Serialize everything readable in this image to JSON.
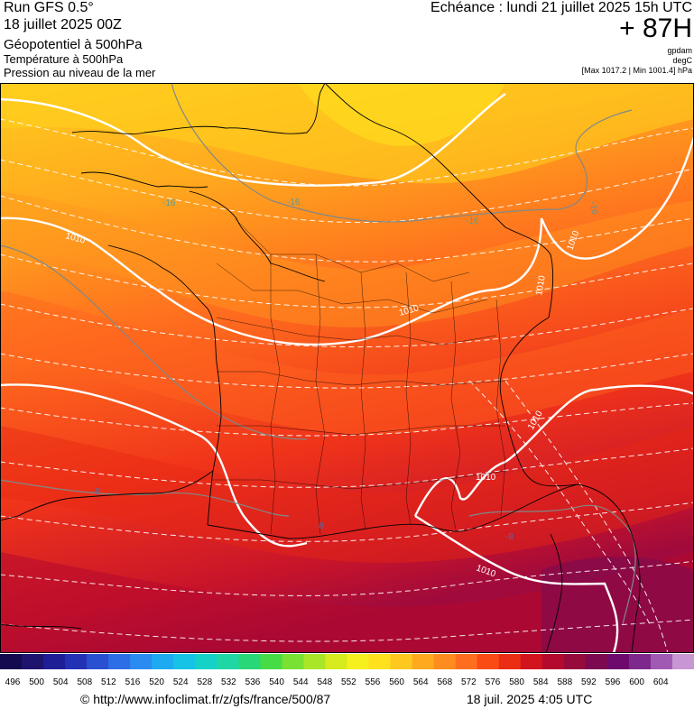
{
  "header": {
    "run_label": "Run GFS 0.5°",
    "run_date": "18 juillet 2025 00Z",
    "field_main": "Géopotentiel à 500hPa",
    "field_temp": "Température à 500hPa",
    "field_pressure": "Pression au niveau de la mer",
    "valid_time": "Echéance : lundi 21 juillet 2025 15h UTC",
    "lead_time": "+ 87H",
    "unit_geopotential": "gpdam",
    "unit_temperature": "degC",
    "pressure_range": "[Max 1017.2 | Min 1001.4] hPa"
  },
  "map": {
    "isobar_labels": [
      "1010",
      "1010",
      "1010",
      "1010",
      "1010",
      "1010",
      "1010"
    ],
    "isotherm_labels": [
      "-16",
      "-16",
      "-16",
      "-16",
      "-8",
      "-8",
      "-8"
    ]
  },
  "colorscale": {
    "ticks": [
      "496",
      "500",
      "504",
      "508",
      "512",
      "516",
      "520",
      "524",
      "528",
      "532",
      "536",
      "540",
      "544",
      "548",
      "552",
      "556",
      "560",
      "564",
      "568",
      "572",
      "576",
      "580",
      "584",
      "588",
      "592",
      "596",
      "600",
      "604"
    ],
    "colors": [
      "#140a50",
      "#1e146e",
      "#1e1e96",
      "#2332b4",
      "#2a50d2",
      "#2b6ee6",
      "#2a8cf0",
      "#1eaaf0",
      "#14c3e6",
      "#14d2c8",
      "#1ed7a5",
      "#28d778",
      "#46dc46",
      "#78e132",
      "#aae628",
      "#d7eb1e",
      "#f5f01e",
      "#ffe11e",
      "#ffc81e",
      "#ffaa1e",
      "#ff8c1e",
      "#ff6e1e",
      "#fa4b14",
      "#eb2d14",
      "#d2141e",
      "#b40a2d",
      "#960a3c",
      "#7d0a50",
      "#6e0a6e",
      "#7d288c",
      "#a05ab4",
      "#c896d2"
    ]
  },
  "footer": {
    "credit": "© http://www.infoclimat.fr/z/gfs/france/500/87",
    "timestamp": "18 juil. 2025  4:05 UTC"
  }
}
